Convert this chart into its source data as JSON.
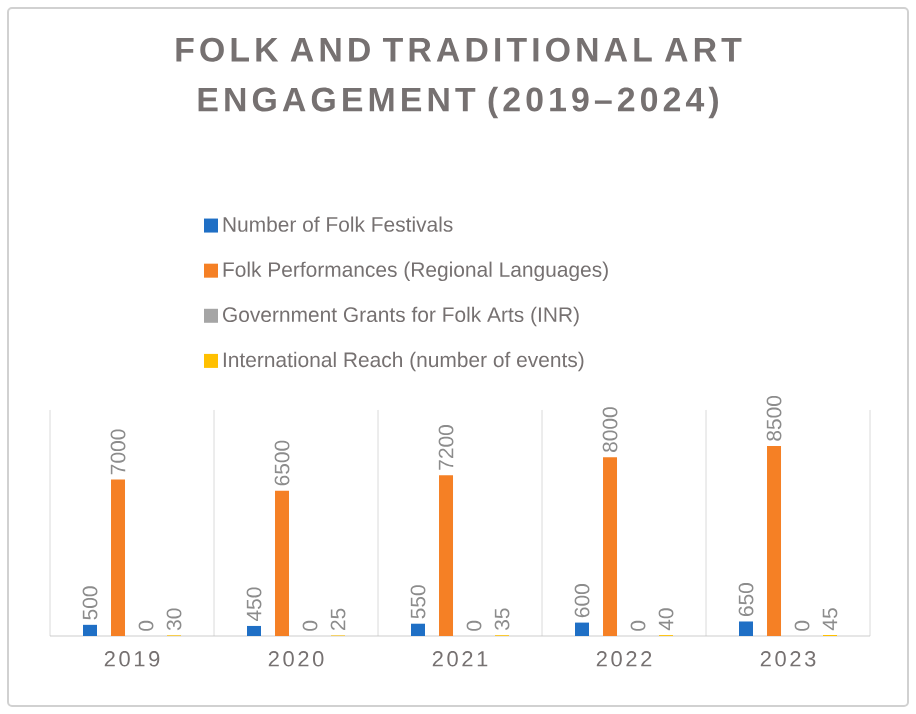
{
  "chart_data": {
    "type": "bar",
    "title": "FOLK AND TRADITIONAL ART ENGAGEMENT (2019–2024)",
    "categories": [
      "2019",
      "2020",
      "2021",
      "2022",
      "2023"
    ],
    "series": [
      {
        "name": "Number of Folk Festivals",
        "color": "#1f6fc5",
        "values": [
          500,
          450,
          550,
          600,
          650
        ]
      },
      {
        "name": "Folk Performances (Regional Languages)",
        "color": "#f58025",
        "values": [
          7000,
          6500,
          7200,
          8000,
          8500
        ]
      },
      {
        "name": "Government Grants for Folk Arts (INR)",
        "color": "#a5a5a5",
        "values": [
          0,
          0,
          0,
          0,
          0
        ]
      },
      {
        "name": "International Reach (number of events)",
        "color": "#ffc000",
        "values": [
          30,
          25,
          35,
          40,
          45
        ]
      }
    ],
    "data_labels": true,
    "grid": "x",
    "legend": "top"
  }
}
